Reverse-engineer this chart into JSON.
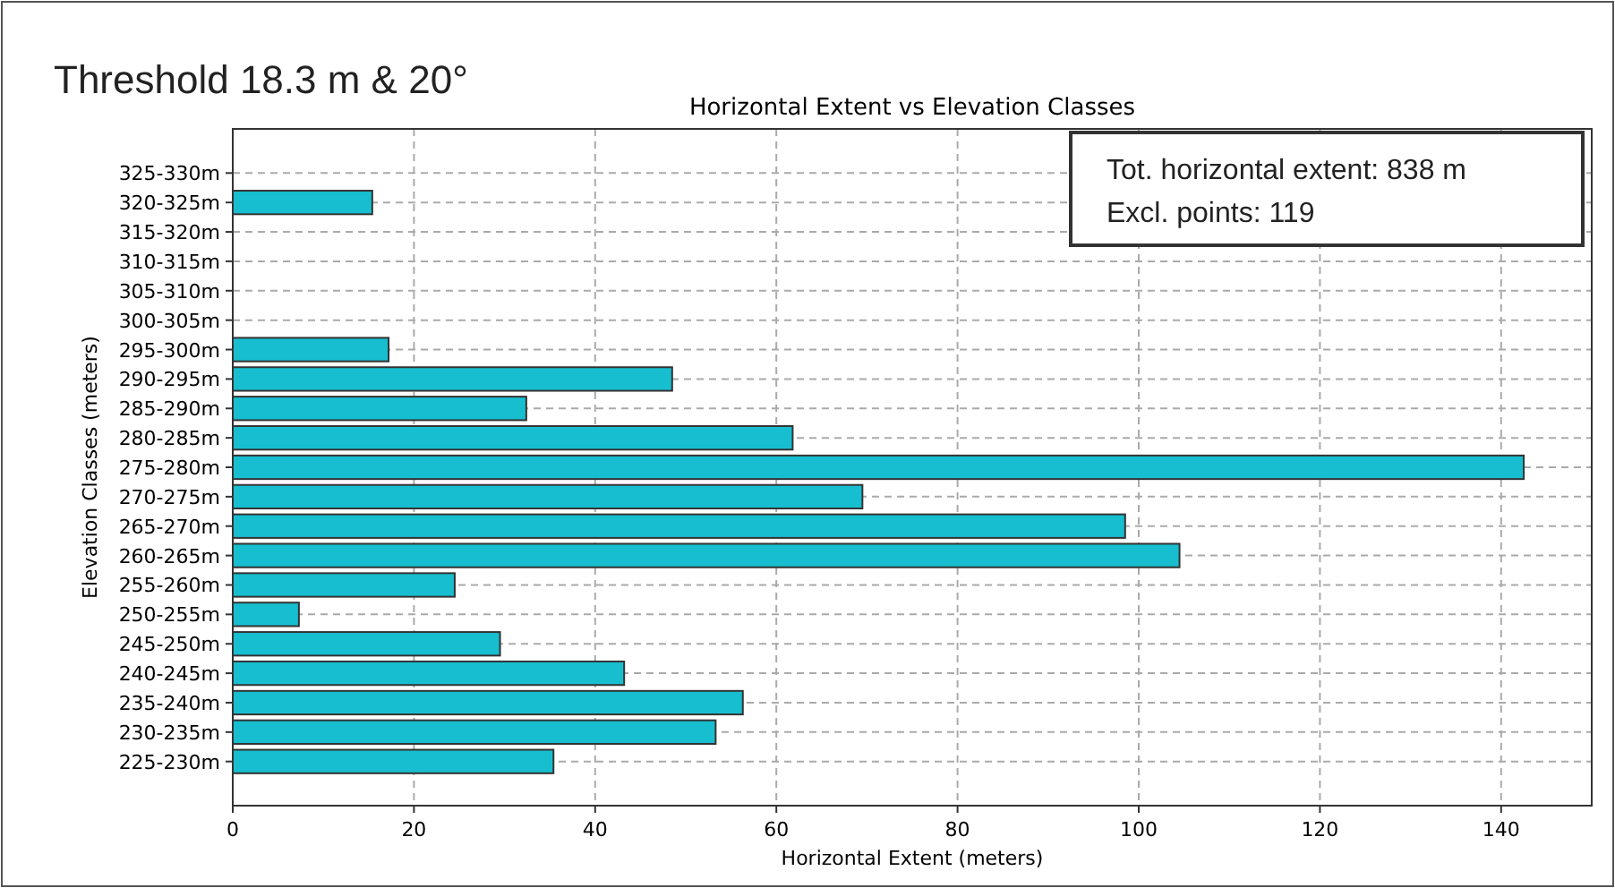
{
  "chart_data": {
    "type": "bar",
    "orientation": "horizontal",
    "title": "Horizontal Extent vs Elevation Classes",
    "xlabel": "Horizontal Extent (meters)",
    "ylabel": "Elevation Classes (meters)",
    "categories": [
      "325-330m",
      "320-325m",
      "315-320m",
      "310-315m",
      "305-310m",
      "300-305m",
      "295-300m",
      "290-295m",
      "285-290m",
      "280-285m",
      "275-280m",
      "270-275m",
      "265-270m",
      "260-265m",
      "255-260m",
      "250-255m",
      "245-250m",
      "240-245m",
      "235-240m",
      "230-235m",
      "225-230m"
    ],
    "values": [
      0,
      15.4,
      0,
      0,
      0,
      0,
      17.2,
      48.5,
      32.4,
      61.8,
      142.5,
      69.5,
      98.5,
      104.5,
      24.5,
      7.3,
      29.5,
      43.2,
      56.3,
      53.3,
      35.4
    ],
    "color": "#17becf",
    "xlim": [
      0,
      150
    ],
    "xticks": [
      0,
      20,
      40,
      60,
      80,
      100,
      120,
      140
    ],
    "grid": true,
    "annotations": [
      "Threshold 18.3 m & 20°",
      "Tot. horizontal extent: 838 m\nExcl. points: 119"
    ]
  }
}
